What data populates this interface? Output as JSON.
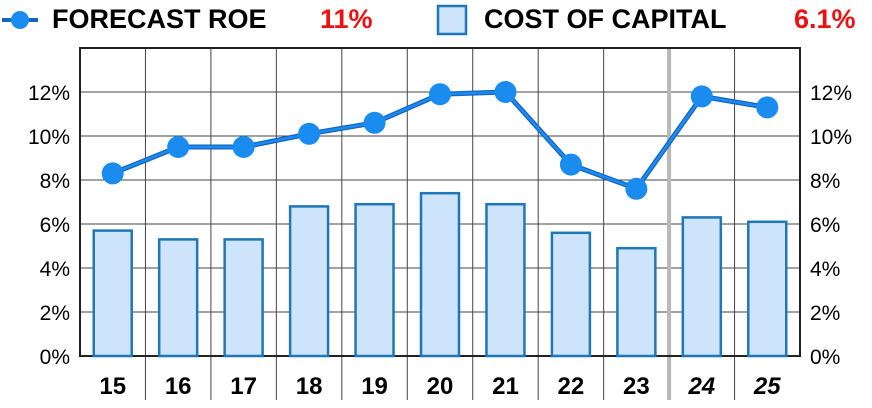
{
  "legend": {
    "roe_label": "FORECAST ROE",
    "roe_value": "11%",
    "capital_label": "COST OF CAPITAL",
    "capital_value": "6.1%"
  },
  "colors": {
    "roe": "#1a8cf0",
    "roe_dark": "#1565c0",
    "bar_fill": "#cde4fa",
    "bar_stroke": "#1f77b8",
    "value_text": "#ee1111",
    "grid": "#444444"
  },
  "chart_data": {
    "type": "bar",
    "categories": [
      "15",
      "16",
      "17",
      "18",
      "19",
      "20",
      "21",
      "22",
      "23",
      "24",
      "25"
    ],
    "forecast_categories": [
      "24",
      "25"
    ],
    "ylim": [
      0,
      0.14
    ],
    "yticks": [
      "0%",
      "2%",
      "4%",
      "6%",
      "8%",
      "10%",
      "12%"
    ],
    "ytick_values": [
      0,
      0.02,
      0.04,
      0.06,
      0.08,
      0.1,
      0.12
    ],
    "grid": true,
    "legend_position": "top",
    "series": [
      {
        "name": "FORECAST ROE",
        "type": "line",
        "values": [
          0.083,
          0.095,
          0.095,
          0.101,
          0.106,
          0.119,
          0.12,
          0.087,
          0.076,
          0.118,
          0.113
        ]
      },
      {
        "name": "COST OF CAPITAL",
        "type": "bar",
        "values": [
          0.057,
          0.053,
          0.053,
          0.068,
          0.069,
          0.074,
          0.069,
          0.056,
          0.049,
          0.063,
          0.061
        ]
      }
    ]
  }
}
